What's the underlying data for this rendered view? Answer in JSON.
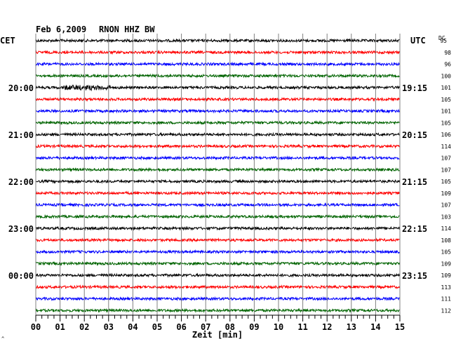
{
  "header": {
    "date": "Feb 6,2009",
    "station": "RNON HHZ BW",
    "left_zone": "CET",
    "right_zone": "UTC",
    "dc_label": "DC"
  },
  "chart_data": {
    "type": "line",
    "title": "Feb 6,2009   RNON HHZ BW",
    "xlabel": "Zeit [min]",
    "xlim": [
      0,
      15
    ],
    "x_ticks": [
      "00",
      "01",
      "02",
      "03",
      "04",
      "05",
      "06",
      "07",
      "08",
      "09",
      "10",
      "11",
      "12",
      "13",
      "14",
      "15"
    ],
    "rows": 24,
    "row_minutes": 15,
    "trace_colors": [
      "#000000",
      "#ff0000",
      "#0000ff",
      "#006400"
    ],
    "left_hour_labels": [
      {
        "row": 4,
        "label": "20:00"
      },
      {
        "row": 8,
        "label": "21:00"
      },
      {
        "row": 12,
        "label": "22:00"
      },
      {
        "row": 16,
        "label": "23:00"
      },
      {
        "row": 20,
        "label": "00:00"
      }
    ],
    "right_hour_labels": [
      {
        "row": 4,
        "label": "19:15"
      },
      {
        "row": 8,
        "label": "20:15"
      },
      {
        "row": 12,
        "label": "21:15"
      },
      {
        "row": 16,
        "label": "22:15"
      },
      {
        "row": 20,
        "label": "23:15"
      }
    ],
    "dc_offsets": [
      95,
      98,
      96,
      100,
      101,
      105,
      101,
      105,
      106,
      114,
      107,
      107,
      105,
      109,
      107,
      103,
      114,
      108,
      105,
      109,
      109,
      113,
      111,
      112
    ],
    "event": {
      "row": 4,
      "start_min": 1.1,
      "end_min": 3.1
    }
  }
}
